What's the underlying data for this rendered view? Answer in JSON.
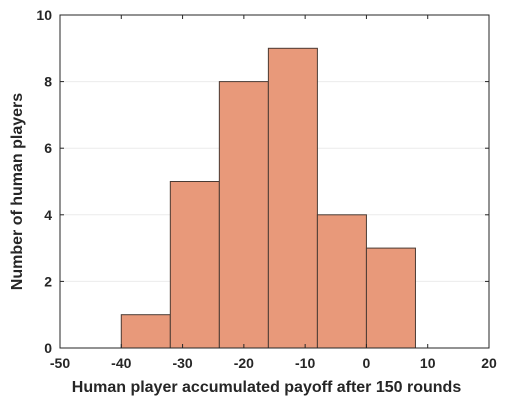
{
  "chart_data": {
    "type": "bar",
    "title": "",
    "xlabel": "Human player accumulated payoff after 150 rounds",
    "ylabel": "Number of human players",
    "xlim": [
      -50,
      20
    ],
    "ylim": [
      0,
      10
    ],
    "xticks": [
      -50,
      -40,
      -30,
      -20,
      -10,
      0,
      10,
      20
    ],
    "yticks": [
      0,
      2,
      4,
      6,
      8,
      10
    ],
    "grid": true,
    "bin_edges": [
      -40,
      -32,
      -24,
      -16,
      -8,
      0,
      8
    ],
    "values": [
      1,
      5,
      8,
      9,
      4,
      3
    ],
    "colors": {
      "bar": "#E8997A",
      "bar_edge": "#4A3A33"
    }
  }
}
